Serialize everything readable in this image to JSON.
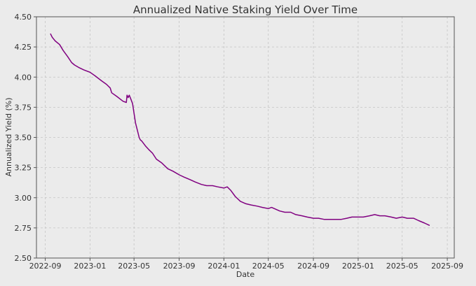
{
  "colors": {
    "figure_bg": "#ebebeb",
    "plot_bg": "#ebebeb",
    "grid": "#c4c4c4",
    "axis": "#555555",
    "line": "#800080"
  },
  "chart_data": {
    "type": "line",
    "title": "Annualized Native Staking Yield Over Time",
    "xlabel": "Date",
    "ylabel": "Annualized Yield (%)",
    "grid": true,
    "legend": "none",
    "ylim": [
      2.5,
      4.5
    ],
    "xlim": [
      "2022-08-08",
      "2025-09-20"
    ],
    "y_ticks": [
      2.5,
      2.75,
      3.0,
      3.25,
      3.5,
      3.75,
      4.0,
      4.25,
      4.5
    ],
    "y_tick_labels": [
      "2.50",
      "2.75",
      "3.00",
      "3.25",
      "3.50",
      "3.75",
      "4.00",
      "4.25",
      "4.50"
    ],
    "x_ticks": [
      "2022-09-01",
      "2023-01-01",
      "2023-05-01",
      "2023-09-01",
      "2024-01-01",
      "2024-05-01",
      "2024-09-01",
      "2025-01-01",
      "2025-05-01",
      "2025-09-01"
    ],
    "x_tick_labels": [
      "2022-09",
      "2023-01",
      "2023-05",
      "2023-09",
      "2024-01",
      "2024-05",
      "2024-09",
      "2025-01",
      "2025-05",
      "2025-09"
    ],
    "series": [
      {
        "x": [
          "2022-09-15",
          "2022-09-20",
          "2022-09-28",
          "2022-10-10",
          "2022-10-20",
          "2022-11-01",
          "2022-11-12",
          "2022-11-20",
          "2022-12-01",
          "2022-12-15",
          "2023-01-01",
          "2023-01-15",
          "2023-02-01",
          "2023-02-15",
          "2023-02-25",
          "2023-03-01",
          "2023-03-15",
          "2023-04-01",
          "2023-04-10",
          "2023-04-12",
          "2023-04-15",
          "2023-04-18",
          "2023-04-22",
          "2023-04-27",
          "2023-05-01",
          "2023-05-05",
          "2023-05-10",
          "2023-05-15",
          "2023-05-18",
          "2023-05-22",
          "2023-06-01",
          "2023-06-10",
          "2023-06-20",
          "2023-07-01",
          "2023-07-15",
          "2023-08-01",
          "2023-08-15",
          "2023-09-01",
          "2023-09-15",
          "2023-10-01",
          "2023-10-15",
          "2023-11-01",
          "2023-11-15",
          "2023-12-01",
          "2023-12-15",
          "2024-01-01",
          "2024-01-10",
          "2024-01-20",
          "2024-02-01",
          "2024-02-15",
          "2024-03-01",
          "2024-03-15",
          "2024-04-01",
          "2024-04-15",
          "2024-05-01",
          "2024-05-10",
          "2024-06-01",
          "2024-06-15",
          "2024-07-01",
          "2024-07-15",
          "2024-08-01",
          "2024-08-15",
          "2024-09-01",
          "2024-09-15",
          "2024-10-01",
          "2024-10-15",
          "2024-11-01",
          "2024-11-15",
          "2024-12-01",
          "2024-12-15",
          "2025-01-01",
          "2025-01-15",
          "2025-02-01",
          "2025-02-15",
          "2025-03-01",
          "2025-03-15",
          "2025-04-01",
          "2025-04-15",
          "2025-05-01",
          "2025-05-15",
          "2025-06-01",
          "2025-06-15",
          "2025-07-01",
          "2025-07-15"
        ],
        "y": [
          4.36,
          4.33,
          4.3,
          4.27,
          4.22,
          4.17,
          4.12,
          4.1,
          4.08,
          4.06,
          4.04,
          4.01,
          3.97,
          3.94,
          3.91,
          3.87,
          3.84,
          3.8,
          3.79,
          3.85,
          3.83,
          3.85,
          3.82,
          3.78,
          3.7,
          3.62,
          3.56,
          3.5,
          3.48,
          3.47,
          3.43,
          3.4,
          3.37,
          3.32,
          3.29,
          3.24,
          3.22,
          3.19,
          3.17,
          3.15,
          3.13,
          3.11,
          3.1,
          3.1,
          3.09,
          3.08,
          3.09,
          3.06,
          3.01,
          2.97,
          2.95,
          2.94,
          2.93,
          2.92,
          2.91,
          2.92,
          2.89,
          2.88,
          2.88,
          2.86,
          2.85,
          2.84,
          2.83,
          2.83,
          2.82,
          2.82,
          2.82,
          2.82,
          2.83,
          2.84,
          2.84,
          2.84,
          2.85,
          2.86,
          2.85,
          2.85,
          2.84,
          2.83,
          2.84,
          2.83,
          2.83,
          2.81,
          2.79,
          2.77
        ]
      }
    ]
  }
}
